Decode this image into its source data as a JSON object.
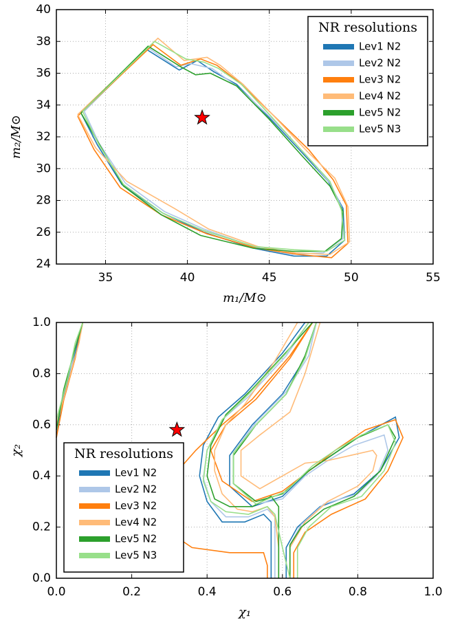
{
  "chart_data": [
    {
      "type": "line",
      "xlabel": "m₁/M⊙",
      "ylabel": "m₂/M⊙",
      "xlim": [
        32,
        55
      ],
      "xticks": [
        35,
        40,
        45,
        50,
        55
      ],
      "ylim": [
        24,
        40
      ],
      "yticks": [
        24,
        26,
        28,
        30,
        32,
        34,
        36,
        38,
        40
      ],
      "grid": true,
      "legend": "upper right",
      "legend_title": "NR resolutions",
      "star": {
        "x": 40.9,
        "y": 33.2,
        "color": "#ff0000"
      },
      "series": [
        {
          "name": "Lev1 N2",
          "color": "#1f77b4",
          "x": [
            33.5,
            37.5,
            39.5,
            40.6,
            41.6,
            43,
            45,
            47,
            48.6,
            49.5,
            49.6,
            48.5,
            46.5,
            44,
            41,
            38.5,
            36,
            34.5,
            33.5
          ],
          "y": [
            33.5,
            37.5,
            36.2,
            36.8,
            36.1,
            35.3,
            33.2,
            31,
            29.2,
            27.5,
            25.5,
            24.5,
            24.5,
            25,
            26,
            27.2,
            29,
            31.5,
            33.5
          ]
        },
        {
          "name": "Lev2 N2",
          "color": "#aec7e8",
          "x": [
            33.7,
            37.6,
            39.3,
            40.2,
            41.5,
            43,
            45.2,
            47.2,
            48.7,
            49.4,
            49.5,
            48.3,
            46.3,
            44,
            41,
            38.6,
            36.2,
            34.6,
            33.7
          ],
          "y": [
            33.6,
            37.6,
            36.4,
            36.6,
            36.3,
            35.2,
            33.1,
            30.9,
            29.1,
            27.6,
            25.6,
            24.7,
            24.6,
            25.1,
            26.2,
            27.3,
            29.1,
            31.6,
            33.6
          ]
        },
        {
          "name": "Lev3 N2",
          "color": "#ff7f0e",
          "x": [
            33.3,
            37.9,
            39.6,
            40.8,
            41.8,
            43.2,
            45.3,
            47.4,
            48.9,
            49.7,
            49.8,
            48.8,
            46.8,
            44.2,
            41.2,
            38.4,
            35.9,
            34.3,
            33.3
          ],
          "y": [
            33.3,
            37.8,
            36.5,
            36.9,
            36.5,
            35.4,
            33.3,
            31.2,
            29.3,
            27.7,
            25.3,
            24.4,
            24.6,
            25.0,
            25.9,
            27.1,
            28.8,
            31.2,
            33.3
          ]
        },
        {
          "name": "Lev4 N2",
          "color": "#ffbb78",
          "x": [
            33.3,
            38.2,
            39.8,
            41.2,
            42.0,
            43.4,
            45.2,
            47.3,
            49.0,
            49.8,
            49.9,
            48.7,
            46.6,
            44.3,
            41.3,
            39.2,
            36.3,
            34.4,
            33.3
          ],
          "y": [
            33.4,
            38.2,
            36.8,
            37.0,
            36.5,
            35.3,
            33.4,
            31.1,
            29.4,
            27.6,
            25.4,
            24.6,
            24.7,
            25.1,
            26.2,
            27.5,
            29.2,
            31.3,
            33.4
          ]
        },
        {
          "name": "Lev5 N2",
          "color": "#2ca02c",
          "x": [
            33.5,
            37.6,
            39.6,
            40.5,
            41.4,
            43.0,
            45.0,
            47.0,
            48.7,
            49.5,
            49.4,
            48.4,
            46.4,
            44.0,
            40.8,
            38.4,
            36.1,
            34.7,
            33.5
          ],
          "y": [
            33.5,
            37.7,
            36.4,
            35.9,
            36.0,
            35.2,
            33.1,
            30.8,
            28.9,
            27.3,
            25.6,
            24.8,
            24.8,
            25.0,
            25.8,
            27.1,
            28.9,
            31.4,
            33.5
          ]
        },
        {
          "name": "Lev5 N3",
          "color": "#98df8a",
          "x": [
            33.6,
            38.0,
            39.9,
            41.0,
            41.9,
            43.3,
            45.1,
            47.1,
            48.7,
            49.4,
            49.6,
            48.5,
            46.5,
            44.1,
            41.0,
            38.5,
            36.1,
            34.6,
            33.6
          ],
          "y": [
            33.6,
            38.0,
            36.9,
            36.7,
            36.3,
            35.3,
            33.3,
            31.0,
            29.2,
            27.4,
            25.5,
            24.8,
            24.9,
            25.1,
            26.1,
            27.2,
            29.0,
            31.5,
            33.6
          ]
        }
      ]
    },
    {
      "type": "line",
      "xlabel": "χ₁",
      "ylabel": "χ₂",
      "xlim": [
        0,
        1
      ],
      "xticks": [
        {
          "value": 0,
          "label": "0.0"
        },
        0.2,
        0.4,
        0.6,
        0.8,
        {
          "value": 1,
          "label": "1.0"
        }
      ],
      "ylim": [
        0,
        1
      ],
      "yticks": [
        {
          "value": 0,
          "label": "0.0"
        },
        0.2,
        0.4,
        0.6,
        0.8,
        {
          "value": 1,
          "label": "1.0"
        }
      ],
      "grid": true,
      "legend": "lower left",
      "legend_title": "NR resolutions",
      "star": {
        "x": 0.32,
        "y": 0.58,
        "color": "#ff0000"
      },
      "series": [
        {
          "name": "Lev1 N2",
          "color": "#1f77b4",
          "x": [
            0,
            0.02,
            0.05,
            0.07,
            null,
            0.66,
            0.6,
            0.5,
            0.43,
            0.39,
            0.38,
            0.4,
            0.44,
            0.5,
            0.55,
            0.57,
            0.57,
            0.57,
            null,
            0.61,
            0.61,
            0.64,
            0.7,
            0.79,
            0.86,
            0.91,
            0.9,
            0.8,
            0.73,
            0.67,
            0.6,
            0.52,
            0.46,
            0.46,
            0.52,
            0.6,
            0.66,
            0.69
          ],
          "y": [
            0.55,
            0.72,
            0.88,
            1.0,
            null,
            1.0,
            0.88,
            0.72,
            0.63,
            0.52,
            0.4,
            0.3,
            0.22,
            0.22,
            0.25,
            0.22,
            0.1,
            0.0,
            null,
            0.0,
            0.12,
            0.2,
            0.28,
            0.33,
            0.42,
            0.55,
            0.63,
            0.55,
            0.48,
            0.42,
            0.32,
            0.28,
            0.36,
            0.48,
            0.6,
            0.72,
            0.86,
            1.0
          ]
        },
        {
          "name": "Lev2 N2",
          "color": "#aec7e8",
          "x": [
            0,
            0.03,
            0.05,
            0.07,
            null,
            0.67,
            0.61,
            0.51,
            0.44,
            0.4,
            0.39,
            0.41,
            0.45,
            0.51,
            0.56,
            0.58,
            0.58,
            0.58,
            null,
            0.62,
            0.62,
            0.65,
            0.71,
            0.8,
            0.85,
            0.88,
            0.87,
            0.79,
            0.72,
            0.66,
            0.6,
            0.53,
            0.47,
            0.47,
            0.53,
            0.61,
            0.67,
            0.69
          ],
          "y": [
            0.6,
            0.75,
            0.9,
            1.0,
            null,
            1.0,
            0.87,
            0.71,
            0.62,
            0.5,
            0.39,
            0.3,
            0.24,
            0.24,
            0.27,
            0.24,
            0.12,
            0.0,
            null,
            0.0,
            0.13,
            0.21,
            0.29,
            0.33,
            0.4,
            0.5,
            0.56,
            0.52,
            0.46,
            0.4,
            0.31,
            0.29,
            0.37,
            0.49,
            0.61,
            0.73,
            0.87,
            1.0
          ]
        },
        {
          "name": "Lev3 N2",
          "color": "#ff7f0e",
          "x": [
            0,
            0.02,
            0.05,
            0.07,
            null,
            0.68,
            0.62,
            0.52,
            0.44,
            0.37,
            0.31,
            0.28,
            0.3,
            0.36,
            0.46,
            0.55,
            0.56,
            0.56,
            null,
            0.63,
            0.63,
            0.66,
            0.73,
            0.82,
            0.88,
            0.92,
            0.9,
            0.82,
            0.74,
            0.68,
            0.6,
            0.52,
            0.44,
            0.41,
            0.45,
            0.53,
            0.62,
            0.68
          ],
          "y": [
            0.55,
            0.7,
            0.86,
            1.0,
            null,
            1.0,
            0.87,
            0.7,
            0.6,
            0.5,
            0.4,
            0.28,
            0.18,
            0.12,
            0.1,
            0.1,
            0.05,
            0.0,
            null,
            0.0,
            0.1,
            0.18,
            0.25,
            0.31,
            0.42,
            0.55,
            0.62,
            0.58,
            0.5,
            0.43,
            0.34,
            0.3,
            0.38,
            0.5,
            0.6,
            0.7,
            0.86,
            1.0
          ]
        },
        {
          "name": "Lev4 N2",
          "color": "#ffbb78",
          "x": [
            0,
            0.03,
            0.06,
            0.07,
            null,
            0.64,
            0.58,
            0.5,
            0.45,
            0.42,
            0.42,
            0.44,
            0.48,
            0.52,
            0.56,
            0.58,
            0.59,
            0.59,
            null,
            0.62,
            0.62,
            0.66,
            0.72,
            0.8,
            0.84,
            0.85,
            0.84,
            0.78,
            0.72,
            0.66,
            0.6,
            0.54,
            0.49,
            0.49,
            0.54,
            0.62,
            0.66,
            0.7
          ],
          "y": [
            0.6,
            0.76,
            0.92,
            1.0,
            null,
            1.0,
            0.85,
            0.68,
            0.6,
            0.5,
            0.42,
            0.33,
            0.27,
            0.26,
            0.28,
            0.24,
            0.12,
            0.0,
            null,
            0.0,
            0.12,
            0.22,
            0.3,
            0.36,
            0.42,
            0.48,
            0.5,
            0.48,
            0.46,
            0.45,
            0.4,
            0.35,
            0.4,
            0.5,
            0.56,
            0.65,
            0.8,
            1.0
          ]
        },
        {
          "name": "Lev5 N2",
          "color": "#2ca02c",
          "x": [
            0,
            0.02,
            0.05,
            0.07,
            null,
            0.68,
            0.62,
            0.52,
            0.45,
            0.41,
            0.4,
            0.42,
            0.46,
            0.52,
            0.57,
            0.59,
            0.59,
            0.59,
            null,
            0.62,
            0.62,
            0.65,
            0.71,
            0.79,
            0.86,
            0.9,
            0.88,
            0.8,
            0.73,
            0.67,
            0.6,
            0.53,
            0.47,
            0.47,
            0.53,
            0.61,
            0.66,
            0.69
          ],
          "y": [
            0.58,
            0.74,
            0.9,
            1.0,
            null,
            1.0,
            0.9,
            0.74,
            0.64,
            0.52,
            0.4,
            0.31,
            0.28,
            0.28,
            0.32,
            0.28,
            0.15,
            0.0,
            null,
            0.0,
            0.13,
            0.2,
            0.27,
            0.32,
            0.42,
            0.55,
            0.6,
            0.55,
            0.48,
            0.42,
            0.33,
            0.3,
            0.37,
            0.48,
            0.6,
            0.72,
            0.87,
            1.0
          ]
        },
        {
          "name": "Lev5 N3",
          "color": "#98df8a",
          "x": [
            0,
            0.03,
            0.05,
            0.07,
            null,
            0.67,
            0.61,
            0.51,
            0.44,
            0.4,
            0.39,
            0.41,
            0.45,
            0.51,
            0.56,
            0.58,
            0.6,
            0.62,
            null,
            0.64,
            0.64,
            0.67,
            0.73,
            0.81,
            0.87,
            0.9,
            0.88,
            0.81,
            0.74,
            0.68,
            0.61,
            0.53,
            0.47,
            0.47,
            0.53,
            0.61,
            0.66,
            0.69
          ],
          "y": [
            0.62,
            0.78,
            0.92,
            1.0,
            null,
            1.0,
            0.88,
            0.72,
            0.62,
            0.5,
            0.38,
            0.3,
            0.26,
            0.25,
            0.28,
            0.25,
            0.12,
            0.0,
            null,
            0.0,
            0.12,
            0.2,
            0.28,
            0.32,
            0.42,
            0.53,
            0.6,
            0.56,
            0.5,
            0.44,
            0.34,
            0.29,
            0.37,
            0.49,
            0.6,
            0.72,
            0.86,
            1.0
          ]
        }
      ]
    }
  ]
}
